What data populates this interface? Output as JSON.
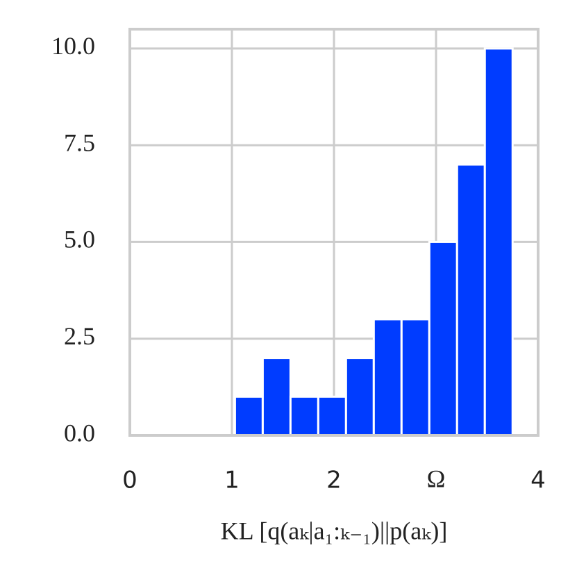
{
  "chart_data": {
    "type": "histogram",
    "xlabel": "KL [q(aₖ|a₁:ₖ₋₁)||p(aₖ)]",
    "bins": [
      1.03,
      1.302,
      1.574,
      1.846,
      2.118,
      2.39,
      2.662,
      2.934,
      3.206,
      3.478,
      3.75
    ],
    "values": [
      1,
      2,
      1,
      1,
      2,
      3,
      3,
      5,
      7,
      10
    ],
    "color": "#003cff",
    "xlim": [
      0,
      4
    ],
    "xticks": [
      0,
      1,
      2,
      {
        "value": 3,
        "label": "Ω"
      },
      4
    ],
    "ylim": [
      0,
      10.5
    ],
    "yticks": [
      {
        "value": 0,
        "label": "0.0"
      },
      2.5,
      {
        "value": 5,
        "label": "5.0"
      },
      7.5,
      {
        "value": 10,
        "label": "10.0"
      }
    ],
    "grid": true
  }
}
